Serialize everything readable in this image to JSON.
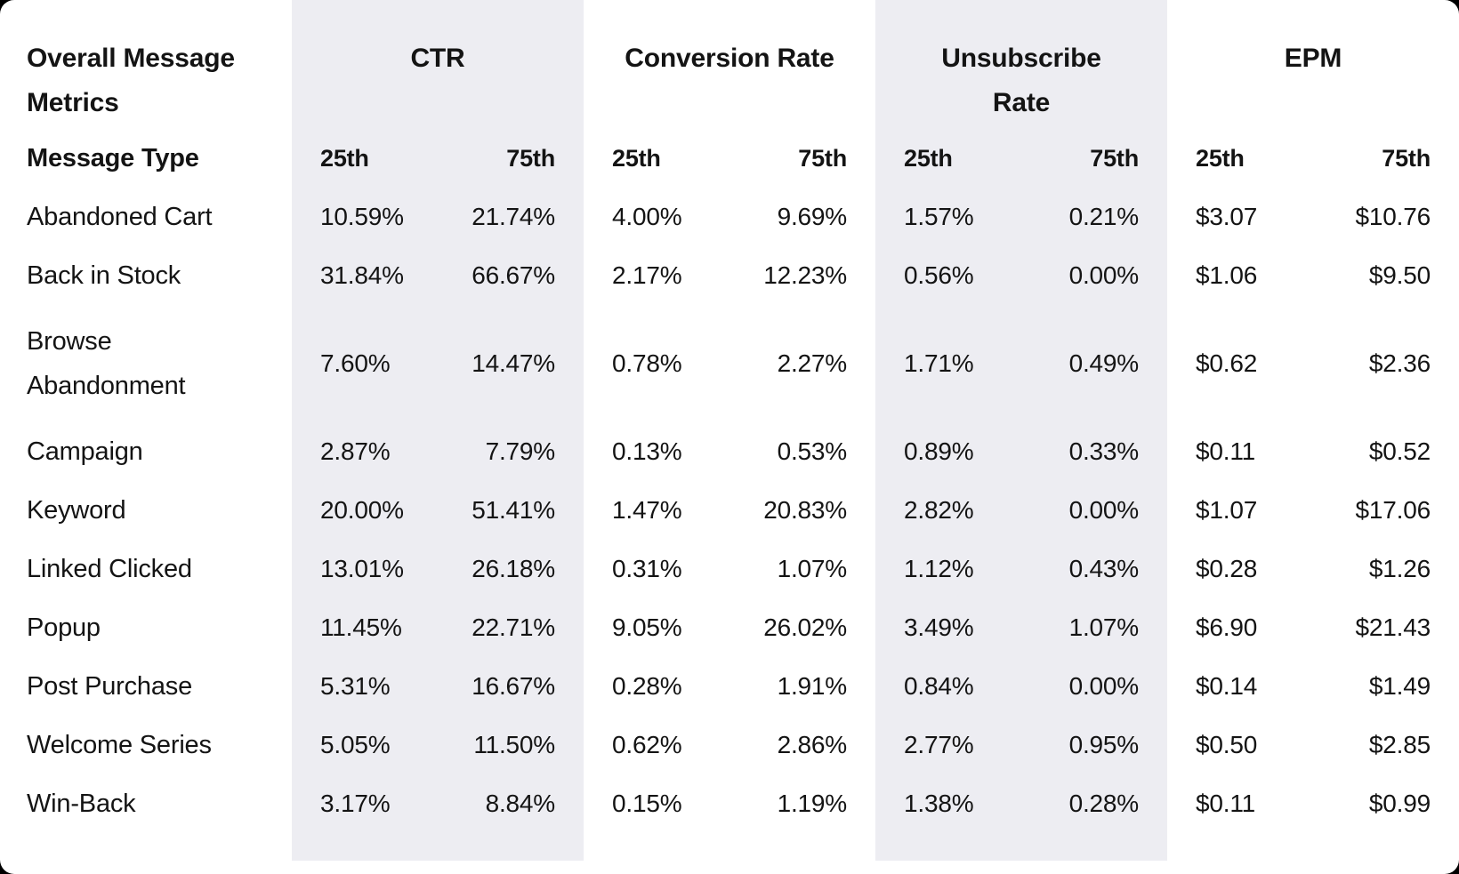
{
  "colors": {
    "background": "#FFFFFF",
    "band_shade": "#EDEDF2",
    "text": "#141414",
    "corner_background": "#000000"
  },
  "chart_data": {
    "type": "table",
    "title": "Overall Message Metrics",
    "row_header": "Message Type",
    "column_groups": [
      {
        "label": "CTR",
        "shaded": true,
        "subcolumns": [
          "25th",
          "75th"
        ]
      },
      {
        "label": "Conversion Rate",
        "shaded": false,
        "subcolumns": [
          "25th",
          "75th"
        ]
      },
      {
        "label": "Unsubscribe Rate",
        "shaded": true,
        "subcolumns": [
          "25th",
          "75th"
        ]
      },
      {
        "label": "EPM",
        "shaded": false,
        "subcolumns": [
          "25th",
          "75th"
        ]
      }
    ],
    "rows": [
      {
        "label": "Abandoned Cart",
        "values": [
          "10.59%",
          "21.74%",
          "4.00%",
          "9.69%",
          "1.57%",
          "0.21%",
          "$3.07",
          "$10.76"
        ]
      },
      {
        "label": "Back in Stock",
        "values": [
          "31.84%",
          "66.67%",
          "2.17%",
          "12.23%",
          "0.56%",
          "0.00%",
          "$1.06",
          "$9.50"
        ]
      },
      {
        "label": "Browse Abandonment",
        "values": [
          "7.60%",
          "14.47%",
          "0.78%",
          "2.27%",
          "1.71%",
          "0.49%",
          "$0.62",
          "$2.36"
        ]
      },
      {
        "label": "Campaign",
        "values": [
          "2.87%",
          "7.79%",
          "0.13%",
          "0.53%",
          "0.89%",
          "0.33%",
          "$0.11",
          "$0.52"
        ]
      },
      {
        "label": "Keyword",
        "values": [
          "20.00%",
          "51.41%",
          "1.47%",
          "20.83%",
          "2.82%",
          "0.00%",
          "$1.07",
          "$17.06"
        ]
      },
      {
        "label": "Linked Clicked",
        "values": [
          "13.01%",
          "26.18%",
          "0.31%",
          "1.07%",
          "1.12%",
          "0.43%",
          "$0.28",
          "$1.26"
        ]
      },
      {
        "label": "Popup",
        "values": [
          "11.45%",
          "22.71%",
          "9.05%",
          "26.02%",
          "3.49%",
          "1.07%",
          "$6.90",
          "$21.43"
        ]
      },
      {
        "label": "Post Purchase",
        "values": [
          "5.31%",
          "16.67%",
          "0.28%",
          "1.91%",
          "0.84%",
          "0.00%",
          "$0.14",
          "$1.49"
        ]
      },
      {
        "label": "Welcome Series",
        "values": [
          "5.05%",
          "11.50%",
          "0.62%",
          "2.86%",
          "2.77%",
          "0.95%",
          "$0.50",
          "$2.85"
        ]
      },
      {
        "label": "Win-Back",
        "values": [
          "3.17%",
          "8.84%",
          "0.15%",
          "1.19%",
          "1.38%",
          "0.28%",
          "$0.11",
          "$0.99"
        ]
      }
    ]
  }
}
